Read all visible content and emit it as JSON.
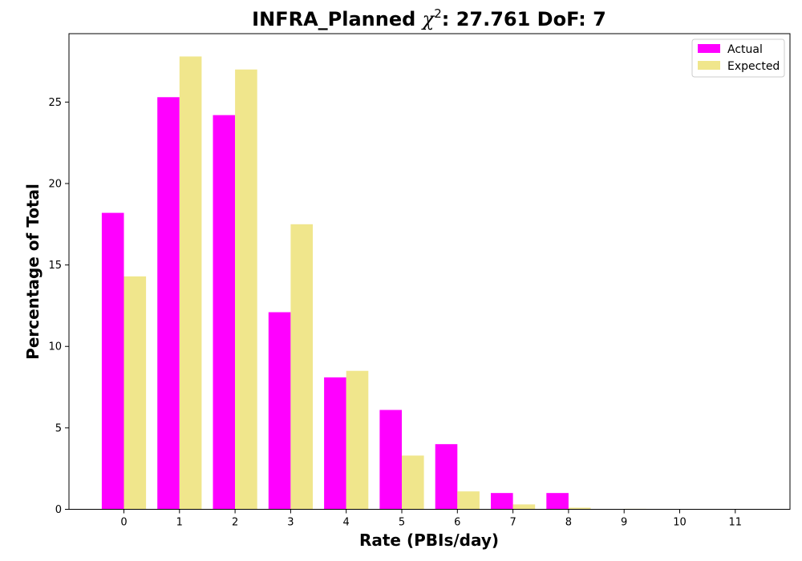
{
  "chart_data": {
    "type": "bar",
    "title_prefix": "INFRA_Planned ",
    "title_chi": "χ",
    "title_sup": "2",
    "title_suffix": ": 27.761 DoF: 7",
    "xlabel": "Rate (PBIs/day)",
    "ylabel": "Percentage of Total",
    "categories": [
      "0",
      "1",
      "2",
      "3",
      "4",
      "5",
      "6",
      "7",
      "8",
      "9",
      "10",
      "11"
    ],
    "yticks": [
      "0",
      "5",
      "10",
      "15",
      "20",
      "25"
    ],
    "ylim": [
      0,
      29.2
    ],
    "grid": false,
    "legend_position": "top-right",
    "series": [
      {
        "name": "Actual",
        "color": "#ff00ff",
        "values": [
          18.2,
          25.3,
          24.2,
          12.1,
          8.1,
          6.1,
          4.0,
          1.0,
          1.0,
          0,
          0,
          0
        ]
      },
      {
        "name": "Expected",
        "color": "#f0e68c",
        "values": [
          14.3,
          27.8,
          27.0,
          17.5,
          8.5,
          3.3,
          1.1,
          0.3,
          0.1,
          0.03,
          0.01,
          0
        ]
      }
    ]
  }
}
